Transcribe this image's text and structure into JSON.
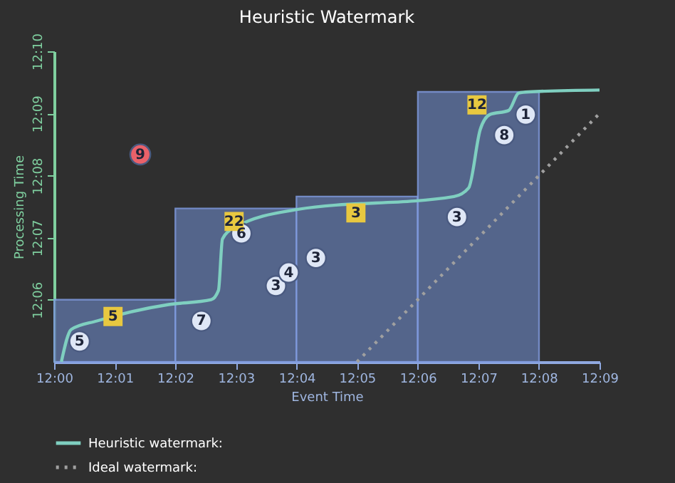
{
  "chart_data": {
    "type": "scatter",
    "title": "Heuristic Watermark",
    "xlabel": "Event Time",
    "ylabel": "Processing Time",
    "xlim": [
      12.0,
      12.15
    ],
    "ylim": [
      12.0833,
      12.1667
    ],
    "xticks": [
      {
        "value": 12.0,
        "label": "12:00"
      },
      {
        "value": 12.0167,
        "label": "12:01"
      },
      {
        "value": 12.0333,
        "label": "12:02"
      },
      {
        "value": 12.05,
        "label": "12:03"
      },
      {
        "value": 12.0667,
        "label": "12:04"
      },
      {
        "value": 12.0833,
        "label": "12:05"
      },
      {
        "value": 12.1,
        "label": "12:06"
      },
      {
        "value": 12.1167,
        "label": "12:07"
      },
      {
        "value": 12.1333,
        "label": "12:08"
      },
      {
        "value": 12.15,
        "label": "12:09"
      }
    ],
    "yticks": [
      {
        "value": 12.1,
        "label": "12:06"
      },
      {
        "value": 12.1167,
        "label": "12:07"
      },
      {
        "value": 12.1333,
        "label": "12:08"
      },
      {
        "value": 12.15,
        "label": "12:09"
      },
      {
        "value": 12.1667,
        "label": "12:10"
      }
    ],
    "grid": false,
    "legend": "bottom",
    "series": [
      {
        "type": "bar",
        "color": "#5b6f9c",
        "x": [
          12.0167,
          12.05,
          12.0833,
          12.1167
        ],
        "values": [
          12.1,
          12.1245,
          12.1277,
          12.1558
        ]
      },
      {
        "type": "line",
        "name": "Heuristic watermark:",
        "color": "#7fcfc0",
        "line_style": "solid",
        "x": [
          12.002,
          12.0047,
          12.0118,
          12.0315,
          12.0432,
          12.0452,
          12.0463,
          12.0495,
          12.0667,
          12.11,
          12.114,
          12.1172,
          12.1198,
          12.125,
          12.1278,
          12.1305,
          12.15
        ],
        "values": [
          12.0833,
          12.092,
          12.0943,
          12.0987,
          12.1,
          12.1025,
          12.1163,
          12.1193,
          12.1242,
          12.1277,
          12.13,
          12.1457,
          12.1497,
          12.1508,
          12.1555,
          12.1558,
          12.1563
        ]
      },
      {
        "type": "line",
        "name": "Ideal watermark:",
        "color": "#a0a0a0",
        "line_style": "dotted",
        "x": [
          12.0833,
          12.15
        ],
        "values": [
          12.0833,
          12.15
        ]
      },
      {
        "marker": "circle",
        "color": "#dfe7f6",
        "x": [
          12.007,
          12.0405,
          12.0515,
          12.061,
          12.0645,
          12.072,
          12.1108,
          12.1238,
          12.1297
        ],
        "values": [
          12.0888,
          12.0943,
          12.1178,
          12.1037,
          12.1073,
          12.1112,
          12.1222,
          12.1442,
          12.1497
        ]
      },
      {
        "marker": "circle",
        "color": "#ea6169",
        "x": [
          12.0237
        ],
        "values": [
          12.139
        ]
      },
      {
        "marker": "square",
        "color": "#e8c840",
        "x": [
          12.0162,
          12.0495,
          12.083,
          12.1163
        ],
        "values": [
          12.0955,
          12.121,
          12.1233,
          12.1523
        ]
      }
    ],
    "annotations": [
      {
        "text": "5",
        "x": 12.007,
        "y": 12.0888
      },
      {
        "text": "7",
        "x": 12.0405,
        "y": 12.0943
      },
      {
        "text": "6",
        "x": 12.0515,
        "y": 12.1178
      },
      {
        "text": "3",
        "x": 12.061,
        "y": 12.1037
      },
      {
        "text": "4",
        "x": 12.0645,
        "y": 12.1073
      },
      {
        "text": "3",
        "x": 12.072,
        "y": 12.1112
      },
      {
        "text": "3",
        "x": 12.1108,
        "y": 12.1222
      },
      {
        "text": "8",
        "x": 12.1238,
        "y": 12.1442
      },
      {
        "text": "1",
        "x": 12.1297,
        "y": 12.1497
      },
      {
        "text": "9",
        "x": 12.0237,
        "y": 12.139
      },
      {
        "text": "5",
        "x": 12.0162,
        "y": 12.0955
      },
      {
        "text": "22",
        "x": 12.0495,
        "y": 12.121
      },
      {
        "text": "3",
        "x": 12.083,
        "y": 12.1233
      },
      {
        "text": "12",
        "x": 12.1163,
        "y": 12.1523
      }
    ]
  }
}
